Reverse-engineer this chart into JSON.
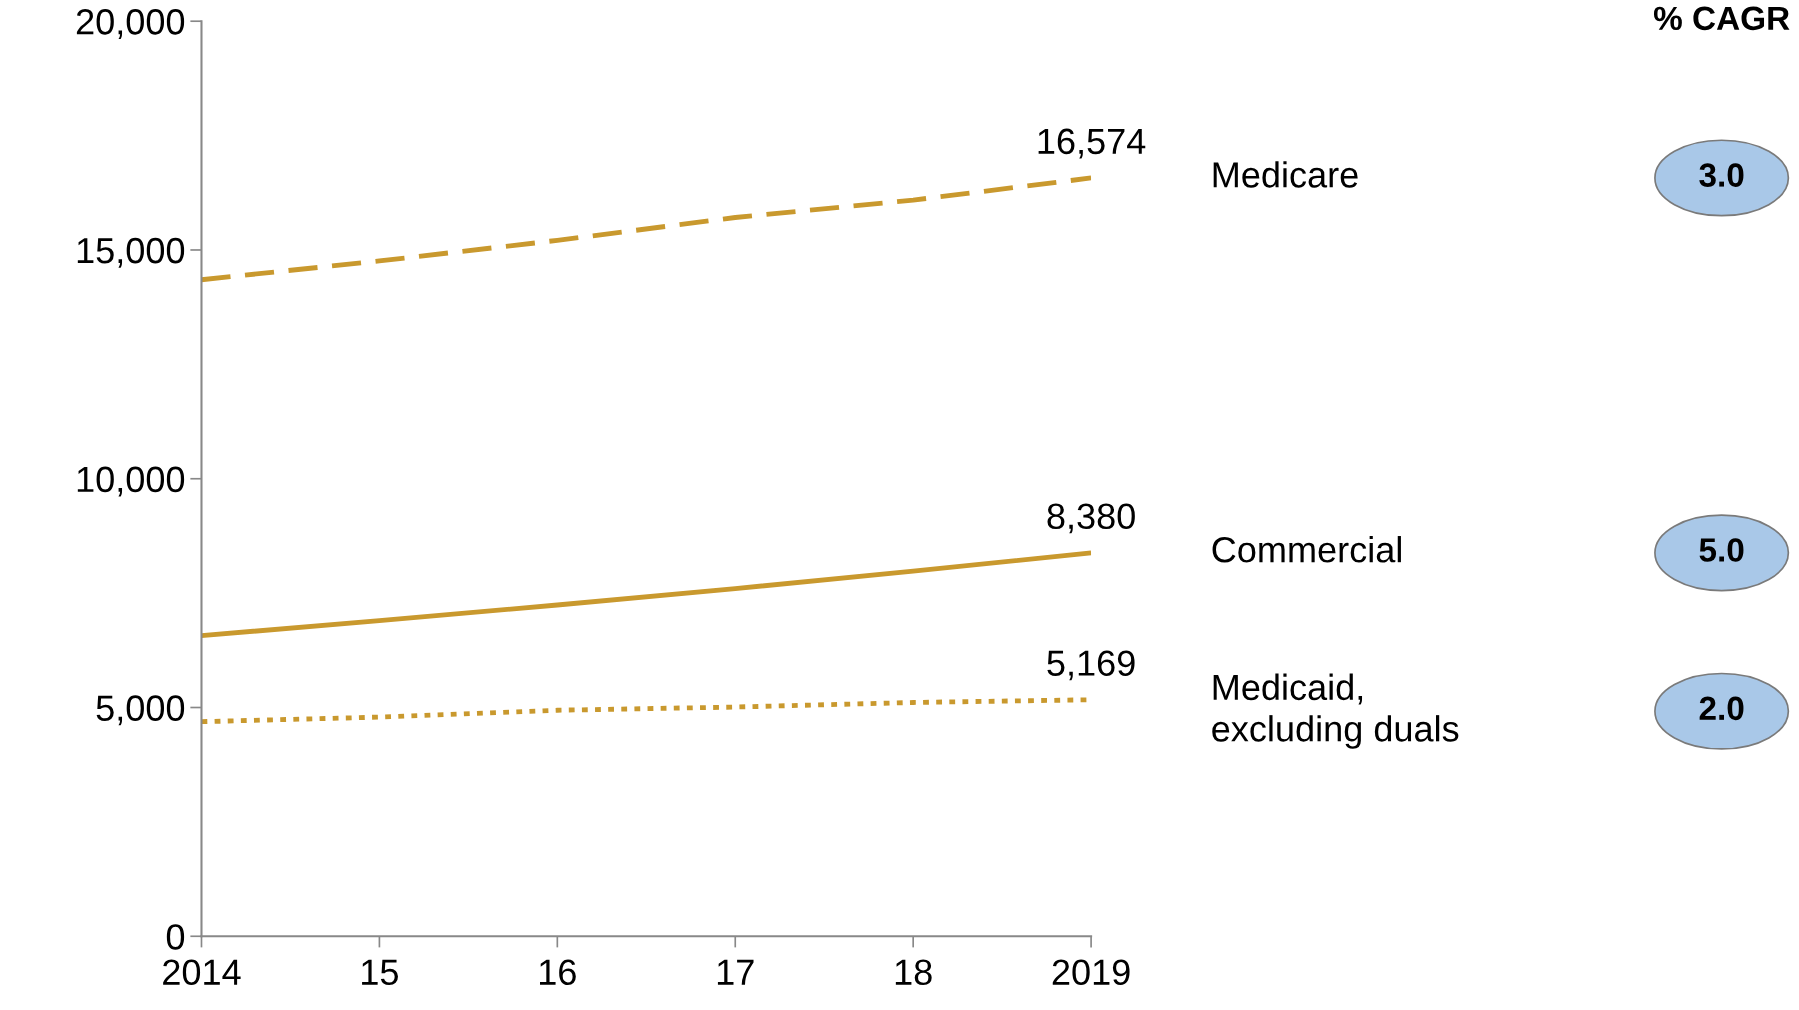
{
  "chart_data": {
    "type": "line",
    "x": [
      2014,
      2015,
      2016,
      2017,
      2018,
      2019
    ],
    "series": [
      {
        "name": "Medicare",
        "color": "#c9992e",
        "line_style": "dashed",
        "values": [
          14350,
          14760,
          15210,
          15710,
          16090,
          16574
        ],
        "value_labels": [
          null,
          null,
          null,
          null,
          null,
          "16,574"
        ]
      },
      {
        "name": "Commercial",
        "color": "#c9992e",
        "line_style": "solid",
        "values": [
          6570,
          6900,
          7240,
          7600,
          7980,
          8380
        ],
        "value_labels": [
          null,
          null,
          null,
          null,
          null,
          "8,380"
        ]
      },
      {
        "name": "Medicaid,\nexcluding duals",
        "color": "#c9992e",
        "line_style": "dotted",
        "values": [
          4690,
          4790,
          4940,
          5010,
          5110,
          5169
        ],
        "value_labels": [
          null,
          null,
          null,
          null,
          null,
          "5,169"
        ]
      }
    ],
    "xlim": [
      2014,
      2019
    ],
    "xticks": [
      2014,
      {
        "value": 2015,
        "label": "15"
      },
      {
        "value": 2016,
        "label": "16"
      },
      {
        "value": 2017,
        "label": "17"
      },
      {
        "value": 2018,
        "label": "18"
      },
      2019
    ],
    "ylim": [
      0,
      20000
    ],
    "yticks": [
      0,
      {
        "value": 5000,
        "label": "5,000"
      },
      {
        "value": 10000,
        "label": "10,000"
      },
      {
        "value": 15000,
        "label": "15,000"
      },
      {
        "value": 20000,
        "label": "20,000"
      }
    ],
    "grid": false,
    "marker": "none",
    "annotations": [
      "% CAGR",
      "3.0",
      "5.0",
      "2.0"
    ]
  }
}
